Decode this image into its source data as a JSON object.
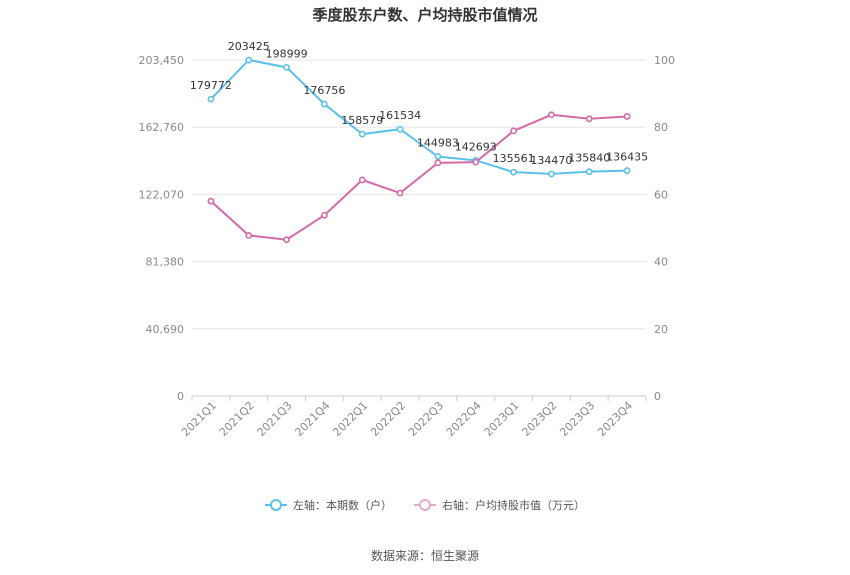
{
  "chart_data": {
    "type": "line",
    "title": "季度股东户数、户均持股市值情况",
    "categories": [
      "2021Q1",
      "2021Q2",
      "2021Q3",
      "2021Q4",
      "2022Q1",
      "2022Q2",
      "2022Q3",
      "2022Q4",
      "2023Q1",
      "2023Q2",
      "2023Q3",
      "2023Q4"
    ],
    "y_left": {
      "ticks": [
        0,
        40690,
        81380,
        122070,
        162760,
        203450
      ],
      "tick_labels": [
        "0",
        "40,690",
        "81,380",
        "122,070",
        "162,760",
        "203,450"
      ],
      "range": [
        0,
        203450
      ]
    },
    "y_right": {
      "ticks": [
        0,
        20,
        40,
        60,
        80,
        100
      ],
      "tick_labels": [
        "0",
        "20",
        "40",
        "60",
        "80",
        "100"
      ],
      "range": [
        0,
        100
      ]
    },
    "series": [
      {
        "name": "左轴：本期数（户）",
        "axis": "left",
        "color": "#5bc0eb",
        "values": [
          179772,
          203425,
          198999,
          176756,
          158579,
          161534,
          144983,
          142693,
          135561,
          134470,
          135840,
          136435
        ],
        "labels": [
          "179772",
          "203425",
          "198999",
          "176756",
          "158579",
          "161534",
          "144983",
          "142693",
          "135561",
          "134470",
          "135840",
          "136435"
        ]
      },
      {
        "name": "右轴：户均持股市值（万元）",
        "axis": "right",
        "color": "#d36aa8",
        "values": [
          58.0,
          47.8,
          46.5,
          53.8,
          64.3,
          60.4,
          69.4,
          69.6,
          78.9,
          83.7,
          82.5,
          83.2
        ]
      }
    ],
    "grid": true,
    "legend_position": "bottom"
  },
  "source": "数据来源：恒生聚源"
}
